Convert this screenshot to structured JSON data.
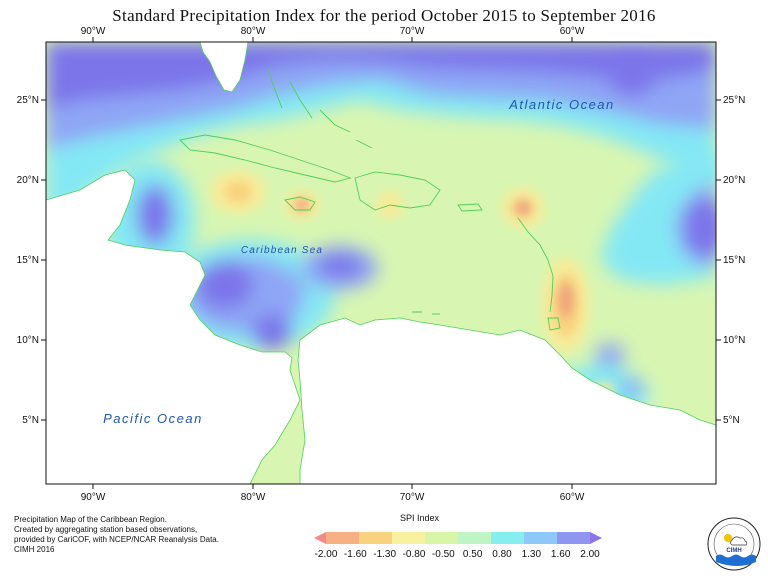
{
  "title": "Standard Precipitation Index for the period October 2015 to September 2016",
  "map": {
    "lon_ticks": [
      "90°W",
      "80°W",
      "70°W",
      "60°W"
    ],
    "lat_ticks": [
      "25°N",
      "20°N",
      "15°N",
      "10°N",
      "5°N"
    ],
    "labels": {
      "atlantic": "Atlantic Ocean",
      "caribbean": "Caribbean Sea",
      "pacific": "Pacific Ocean"
    }
  },
  "credits": [
    "Precipitation Map of the Caribbean Region.",
    "Created by aggregating station based observations,",
    "provided by CariCOF, with NCEP/NCAR Reanalysis Data.",
    "CIMH 2016"
  ],
  "legend": {
    "title": "SPI Index",
    "ticks": [
      "-2.00",
      "-1.60",
      "-1.30",
      "-0.80",
      "-0.50",
      "0.50",
      "0.80",
      "1.30",
      "1.60",
      "2.00"
    ],
    "colors": [
      "#f28a8a",
      "#f6b084",
      "#f8d27e",
      "#f7f1a0",
      "#d8f5a8",
      "#bff5c4",
      "#86eef0",
      "#8ec8f8",
      "#8e96f0",
      "#8a74e8"
    ]
  },
  "logo": {
    "name": "CIMH"
  },
  "colors": {
    "very_wet": "#7c74ea",
    "wet": "#8fa6f5",
    "moderately_wet": "#84e8f4",
    "near_normal": "#d8f6b2",
    "dry": "#f6ec9a",
    "very_dry": "#f0a47c",
    "land_outline": "#4fcf58"
  }
}
